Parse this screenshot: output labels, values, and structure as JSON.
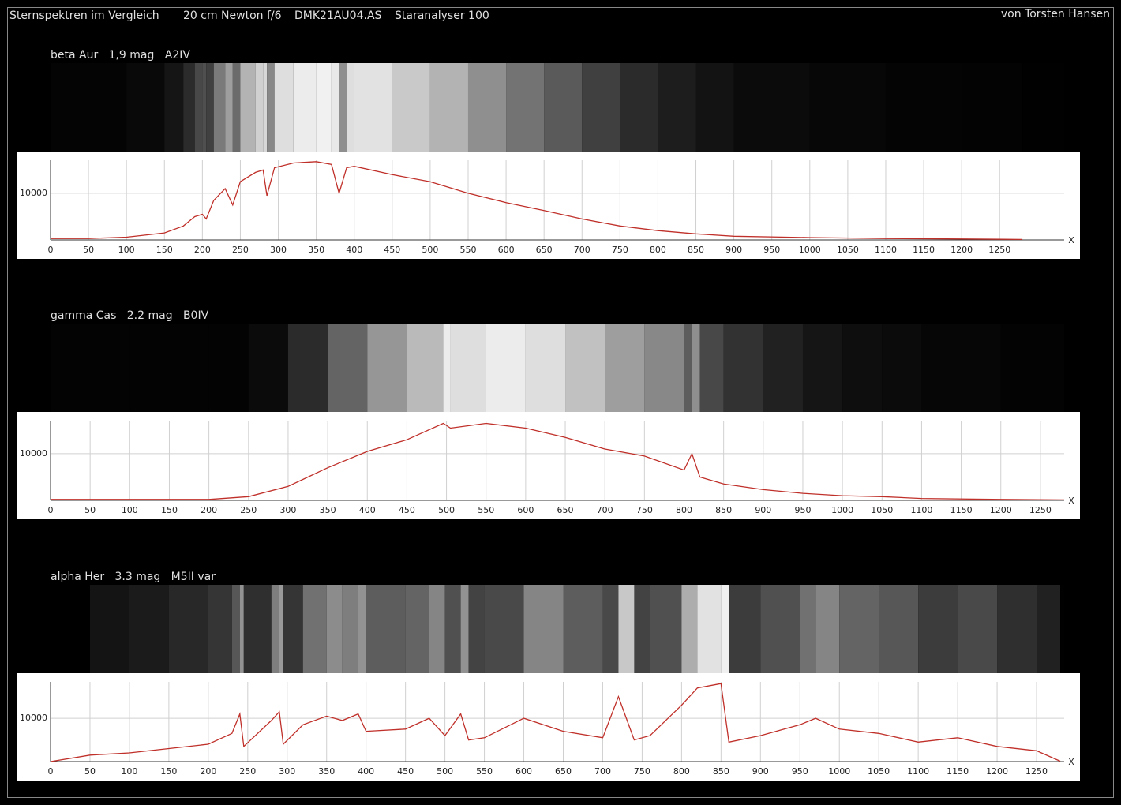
{
  "header": {
    "title": "Sternspektren im Vergleich",
    "telescope": "20 cm Newton f/6",
    "camera": "DMK21AU04.AS",
    "grating": "Staranalyser 100",
    "author": "von Torsten Hansen"
  },
  "chart_data": [
    {
      "type": "line",
      "title": "beta Aur   1,9 mag   A2IV",
      "x_label": "X",
      "color": "#c0302a",
      "grid": true,
      "xlim": [
        0,
        1335
      ],
      "ylim": [
        0,
        17100
      ],
      "xticks": [
        0,
        50,
        100,
        150,
        200,
        250,
        300,
        350,
        400,
        450,
        500,
        550,
        600,
        650,
        700,
        750,
        800,
        850,
        900,
        950,
        1000,
        1050,
        1100,
        1150,
        1200,
        1250
      ],
      "yticks": [
        10000
      ],
      "x": [
        0,
        50,
        100,
        150,
        175,
        190,
        200,
        205,
        215,
        230,
        240,
        250,
        270,
        280,
        285,
        295,
        320,
        350,
        370,
        380,
        390,
        400,
        450,
        500,
        550,
        600,
        650,
        700,
        750,
        800,
        850,
        900,
        1000,
        1100,
        1200,
        1280
      ],
      "values": [
        300,
        300,
        600,
        1500,
        3000,
        5000,
        5500,
        4500,
        8500,
        11000,
        7500,
        12500,
        14500,
        15000,
        9500,
        15500,
        16500,
        16800,
        16200,
        10000,
        15500,
        15800,
        14000,
        12500,
        10000,
        8000,
        6300,
        4500,
        3000,
        2000,
        1300,
        800,
        500,
        300,
        200,
        100
      ]
    },
    {
      "type": "line",
      "title": "gamma Cas   2.2 mag   B0IV",
      "x_label": "X",
      "color": "#c0302a",
      "grid": true,
      "xlim": [
        0,
        1280
      ],
      "ylim": [
        0,
        17100
      ],
      "xticks": [
        0,
        50,
        100,
        150,
        200,
        250,
        300,
        350,
        400,
        450,
        500,
        550,
        600,
        650,
        700,
        750,
        800,
        850,
        900,
        950,
        1000,
        1050,
        1100,
        1150,
        1200,
        1250
      ],
      "yticks": [
        10000
      ],
      "x": [
        0,
        100,
        200,
        250,
        300,
        350,
        400,
        450,
        496,
        505,
        550,
        600,
        650,
        700,
        750,
        800,
        810,
        820,
        850,
        900,
        950,
        1000,
        1050,
        1100,
        1200,
        1280
      ],
      "values": [
        200,
        200,
        200,
        800,
        3000,
        7000,
        10500,
        13000,
        16500,
        15500,
        16500,
        15500,
        13500,
        11000,
        9500,
        6500,
        10000,
        5000,
        3500,
        2300,
        1500,
        1000,
        800,
        400,
        200,
        100
      ]
    },
    {
      "type": "line",
      "title": "alpha Her   3.3 mag   M5II var",
      "x_label": "X",
      "color": "#c0302a",
      "grid": true,
      "xlim": [
        0,
        1285
      ],
      "ylim": [
        0,
        18400
      ],
      "xticks": [
        0,
        50,
        100,
        150,
        200,
        250,
        300,
        350,
        400,
        450,
        500,
        550,
        600,
        650,
        700,
        750,
        800,
        850,
        900,
        950,
        1000,
        1050,
        1100,
        1150,
        1200,
        1250
      ],
      "yticks": [
        10000
      ],
      "x": [
        0,
        50,
        100,
        150,
        200,
        230,
        240,
        245,
        280,
        290,
        295,
        320,
        350,
        370,
        390,
        400,
        450,
        480,
        500,
        520,
        530,
        550,
        600,
        650,
        700,
        720,
        740,
        760,
        800,
        820,
        850,
        860,
        900,
        950,
        970,
        1000,
        1050,
        1100,
        1150,
        1200,
        1250,
        1280
      ],
      "values": [
        0,
        1500,
        2000,
        3000,
        4000,
        6500,
        11000,
        3500,
        9500,
        11500,
        4000,
        8500,
        10500,
        9500,
        11000,
        7000,
        7500,
        10000,
        6000,
        11000,
        5000,
        5500,
        10000,
        7000,
        5500,
        15000,
        5000,
        6000,
        13000,
        17000,
        18000,
        4500,
        6000,
        8500,
        10000,
        7500,
        6500,
        4500,
        5500,
        3500,
        2500,
        100
      ]
    }
  ]
}
